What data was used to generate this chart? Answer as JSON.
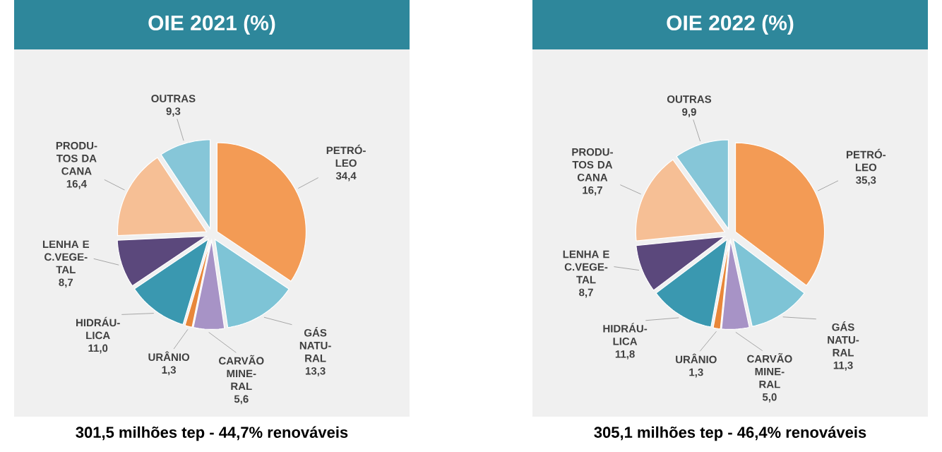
{
  "chart_data": [
    {
      "type": "pie",
      "title": "OIE 2021 (%)",
      "categories": [
        "PETRÓ-LEO",
        "GÁS NATU-RAL",
        "CARVÃO MINE-RAL",
        "URÂNIO",
        "HIDRÁU-LICA",
        "LENHA E C.VEGE-TAL",
        "PRODU-TOS DA CANA",
        "OUTRAS"
      ],
      "values": [
        34.4,
        13.3,
        5.6,
        1.3,
        11.0,
        8.7,
        16.4,
        9.3
      ],
      "value_labels": [
        "34,4",
        "13,3",
        "5,6",
        "1,3",
        "11,0",
        "8,7",
        "16,4",
        "9,3"
      ],
      "colors": [
        "#f39b55",
        "#7ec4d6",
        "#a793c6",
        "#e8873a",
        "#3a98b0",
        "#5b487c",
        "#f6bf95",
        "#86c6d8"
      ],
      "annotations": [
        "301,5 milhões tep - 44,7% renováveis"
      ]
    },
    {
      "type": "pie",
      "title": "OIE 2022 (%)",
      "categories": [
        "PETRÓ-LEO",
        "GÁS NATU-RAL",
        "CARVÃO MINE-RAL",
        "URÂNIO",
        "HIDRÁU-LICA",
        "LENHA E C.VEGE-TAL",
        "PRODU-TOS DA CANA",
        "OUTRAS"
      ],
      "values": [
        35.3,
        11.3,
        5.0,
        1.3,
        11.8,
        8.7,
        16.7,
        9.9
      ],
      "value_labels": [
        "35,3",
        "11,3",
        "5,0",
        "1,3",
        "11,8",
        "8,7",
        "16,7",
        "9,9"
      ],
      "colors": [
        "#f39b55",
        "#7ec4d6",
        "#a793c6",
        "#e8873a",
        "#3a98b0",
        "#5b487c",
        "#f6bf95",
        "#86c6d8"
      ],
      "annotations": [
        "305,1 milhões tep - 46,4% renováveis"
      ]
    }
  ]
}
